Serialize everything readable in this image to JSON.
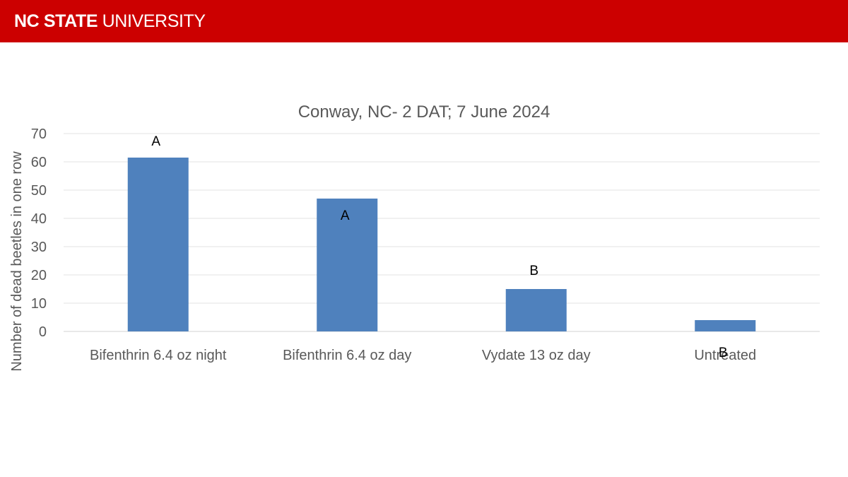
{
  "header": {
    "logo_strong": "NC STATE",
    "logo_light": " UNIVERSITY",
    "color": "#cc0000"
  },
  "chart_data": {
    "type": "bar",
    "title": "Conway, NC- 2 DAT; 7 June 2024",
    "xlabel": "",
    "ylabel": "Number of dead beetles in one row",
    "categories": [
      "Bifenthrin 6.4 oz night",
      "Bifenthrin 6.4 oz day",
      "Vydate 13 oz day",
      "Untreated"
    ],
    "values": [
      61.5,
      47,
      15,
      4
    ],
    "significance_letters": [
      "A",
      "A",
      "B",
      "B"
    ],
    "ylim": [
      0,
      70
    ],
    "yticks": [
      0,
      10,
      20,
      30,
      40,
      50,
      60,
      70
    ],
    "grid": true,
    "legend": "none",
    "bar_color": "#4f81bd"
  }
}
